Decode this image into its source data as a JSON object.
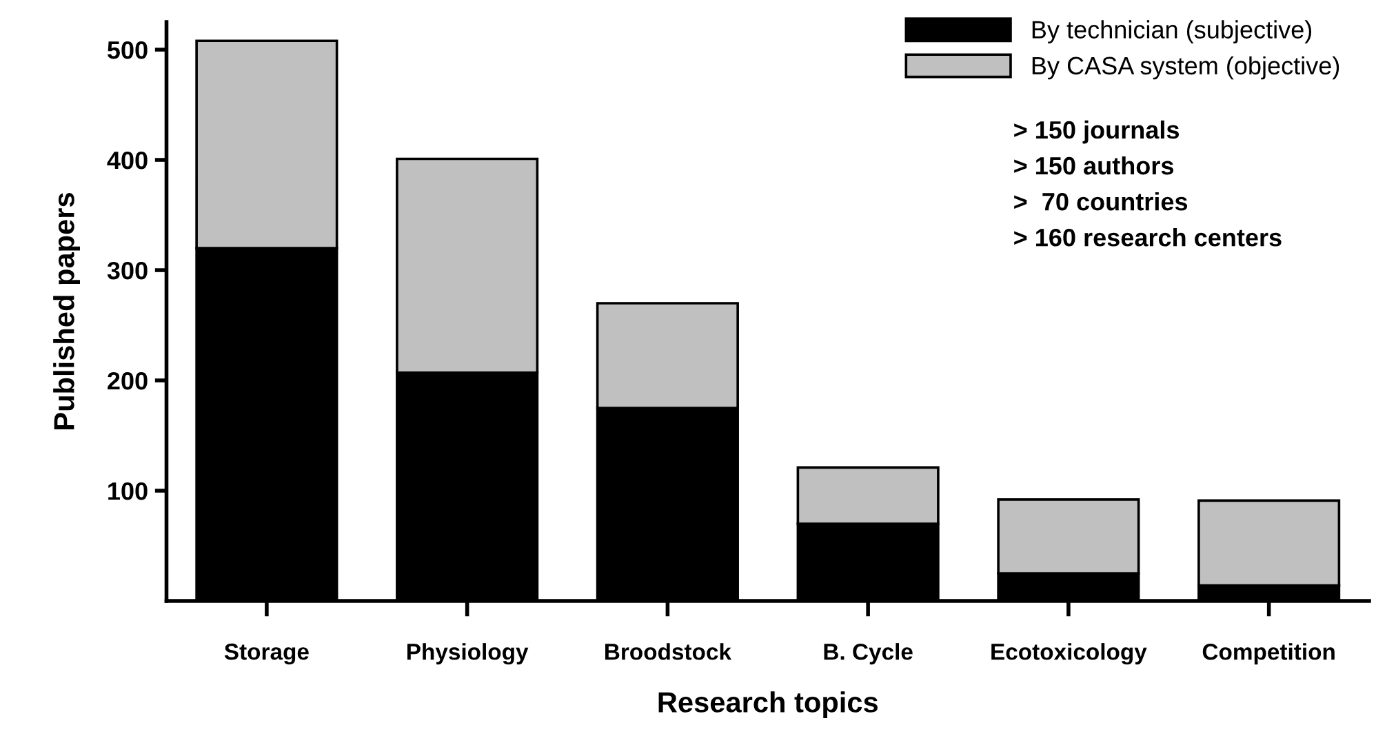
{
  "chart_data": {
    "type": "bar",
    "stacked": true,
    "xlabel": "Research topics",
    "ylabel": "Published papers",
    "categories": [
      "Storage",
      "Physiology",
      "Broodstock",
      "B. Cycle",
      "Ecotoxicology",
      "Competition"
    ],
    "series": [
      {
        "name": "By technician (subjective)",
        "color": "#000000",
        "values": [
          320,
          207,
          175,
          70,
          25,
          14
        ]
      },
      {
        "name": "By CASA system (objective)",
        "color": "#c0c0c0",
        "values": [
          188,
          194,
          95,
          51,
          67,
          77
        ]
      }
    ],
    "ylim": [
      0,
      525
    ],
    "yticks": [
      100,
      200,
      300,
      400,
      500
    ],
    "legend": "top right",
    "grid": false,
    "annotations": [
      "> 150 journals",
      "> 150 authors",
      ">  70 countries",
      "> 160 research centers"
    ]
  }
}
